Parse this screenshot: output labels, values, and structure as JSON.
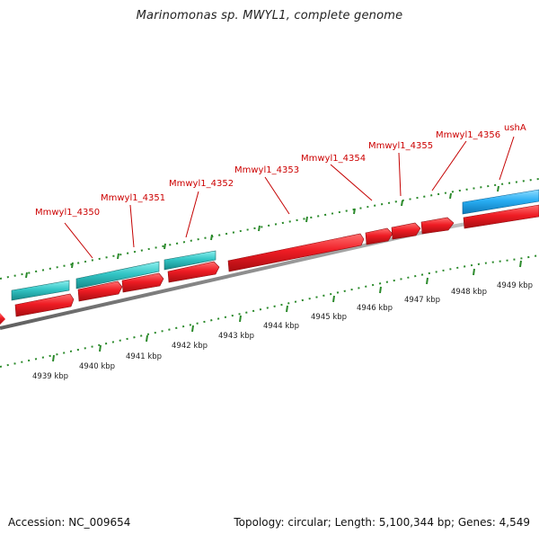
{
  "map": {
    "title": "Marinomonas sp. MWYL1, complete genome",
    "footer": {
      "accession": "Accession: NC_009654",
      "topology": "Topology: circular; Length: 5,100,344 bp; Genes: 4,549"
    },
    "scale_labels": [
      "4939 kbp",
      "4940 kbp",
      "4941 kbp",
      "4942 kbp",
      "4943 kbp",
      "4944 kbp",
      "4945 kbp",
      "4946 kbp",
      "4947 kbp",
      "4948 kbp",
      "4949 kbp"
    ],
    "gene_labels": [
      "Mmwyl1_4350",
      "Mmwyl1_4351",
      "Mmwyl1_4352",
      "Mmwyl1_4353",
      "Mmwyl1_4354",
      "Mmwyl1_4355",
      "Mmwyl1_4356",
      "ushA"
    ],
    "colors": {
      "cds": "#ef1c24",
      "cds_light": "#ff6b6b",
      "cds_dark": "#b10d12",
      "gene": "#34c6c6",
      "gene_alt": "#29aef3",
      "gene_label": "#cc0000",
      "tick": "#2b8a2b",
      "backbone": "#8f8f8f",
      "text": "#222222"
    }
  }
}
